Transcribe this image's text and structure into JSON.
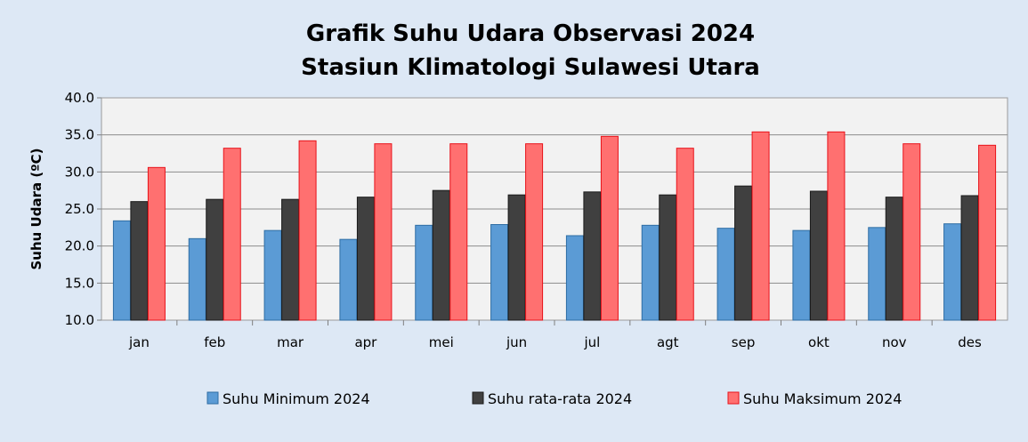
{
  "chart_data": {
    "type": "bar",
    "title": [
      "Grafik Suhu Udara Observasi 2024",
      "Stasiun Klimatologi Sulawesi Utara"
    ],
    "ylabel": "Suhu Udara (ºC)",
    "xlabel": "",
    "ylim": [
      10.0,
      40.0
    ],
    "yticks": [
      "10.0",
      "15.0",
      "20.0",
      "25.0",
      "30.0",
      "35.0",
      "40.0"
    ],
    "grid": true,
    "legend_position": "bottom",
    "categories": [
      "jan",
      "feb",
      "mar",
      "apr",
      "mei",
      "jun",
      "jul",
      "agt",
      "sep",
      "okt",
      "nov",
      "des"
    ],
    "series": [
      {
        "name": "Suhu Minimum 2024",
        "color": "#5b9bd5",
        "stroke": "#2e6da4",
        "values": [
          23.4,
          21.0,
          22.1,
          20.9,
          22.8,
          22.9,
          21.4,
          22.8,
          22.4,
          22.1,
          22.5,
          23.0
        ]
      },
      {
        "name": "Suhu rata-rata 2024",
        "color": "#404040",
        "stroke": "#1a1a1a",
        "values": [
          26.0,
          26.3,
          26.3,
          26.6,
          27.5,
          26.9,
          27.3,
          26.9,
          28.1,
          27.4,
          26.6,
          26.8
        ]
      },
      {
        "name": "Suhu Maksimum 2024",
        "color": "#ff7070",
        "stroke": "#e8121a",
        "values": [
          30.6,
          33.2,
          34.2,
          33.8,
          33.8,
          33.8,
          34.8,
          33.2,
          35.4,
          35.4,
          33.8,
          33.6
        ]
      }
    ]
  }
}
